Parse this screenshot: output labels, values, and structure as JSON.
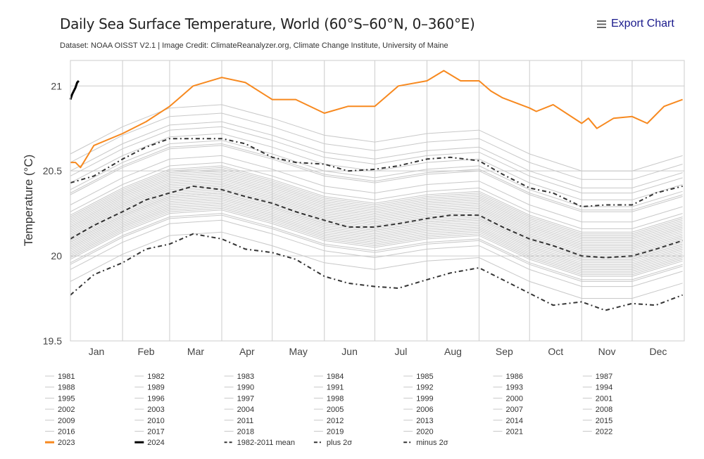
{
  "header": {
    "title": "Daily Sea Surface Temperature, World (60°S–60°N, 0–360°E)",
    "subtitle": "Dataset: NOAA OISST V2.1 | Image Credit: ClimateReanalyzer.org, Climate Change Institute, University of Maine",
    "export_label": "Export Chart",
    "export_icon": "hamburger-menu-icon"
  },
  "chart_data": {
    "type": "line",
    "ylabel": "Temperature (°C)",
    "xlabel": "",
    "ylim": [
      19.5,
      21.15
    ],
    "yticks": [
      19.5,
      20,
      20.5,
      21
    ],
    "ytick_labels": [
      "19.5",
      "20",
      "20.5",
      "21"
    ],
    "xlim": [
      0,
      365
    ],
    "x_unit": "day of year",
    "month_labels": [
      "Jan",
      "Feb",
      "Mar",
      "Apr",
      "May",
      "Jun",
      "Jul",
      "Aug",
      "Sep",
      "Oct",
      "Nov",
      "Dec"
    ],
    "month_starts": [
      0,
      31,
      59,
      90,
      120,
      151,
      181,
      212,
      243,
      273,
      304,
      334,
      365
    ],
    "grid": true,
    "legend_placement": "bottom",
    "colors": {
      "years": "#c8c8c8",
      "y2023": "#f7891f",
      "y2024": "#000000",
      "mean": "#333333"
    },
    "year_x": [
      0,
      31,
      59,
      90,
      120,
      151,
      181,
      212,
      243,
      273,
      304,
      334,
      364
    ],
    "years": [
      {
        "name": "1981",
        "values": [
          19.98,
          20.14,
          20.25,
          20.27,
          20.19,
          20.09,
          20.05,
          20.1,
          20.12,
          19.98,
          19.88,
          19.88,
          19.97
        ]
      },
      {
        "name": "1982",
        "values": [
          19.95,
          20.11,
          20.22,
          20.24,
          20.16,
          20.06,
          20.02,
          20.07,
          20.09,
          19.95,
          19.85,
          19.85,
          19.94
        ]
      },
      {
        "name": "1983",
        "values": [
          20.05,
          20.21,
          20.32,
          20.34,
          20.26,
          20.16,
          20.12,
          20.17,
          20.19,
          20.05,
          19.95,
          19.95,
          20.04
        ]
      },
      {
        "name": "1984",
        "values": [
          19.92,
          20.08,
          20.19,
          20.21,
          20.13,
          20.03,
          19.99,
          20.04,
          20.06,
          19.92,
          19.82,
          19.82,
          19.91
        ]
      },
      {
        "name": "1985",
        "values": [
          19.85,
          20.01,
          20.12,
          20.14,
          20.06,
          19.96,
          19.92,
          19.97,
          19.99,
          19.85,
          19.75,
          19.75,
          19.84
        ]
      },
      {
        "name": "1986",
        "values": [
          19.96,
          20.12,
          20.23,
          20.25,
          20.17,
          20.07,
          20.03,
          20.08,
          20.1,
          19.96,
          19.86,
          19.86,
          19.95
        ]
      },
      {
        "name": "1987",
        "values": [
          20.1,
          20.26,
          20.37,
          20.39,
          20.31,
          20.21,
          20.17,
          20.22,
          20.24,
          20.1,
          20.0,
          20.0,
          20.09
        ]
      },
      {
        "name": "1988",
        "values": [
          20.04,
          20.2,
          20.31,
          20.33,
          20.25,
          20.15,
          20.11,
          20.16,
          20.18,
          20.04,
          19.94,
          19.94,
          20.03
        ]
      },
      {
        "name": "1989",
        "values": [
          20.0,
          20.16,
          20.27,
          20.29,
          20.21,
          20.11,
          20.07,
          20.12,
          20.14,
          20.0,
          19.9,
          19.9,
          19.99
        ]
      },
      {
        "name": "1990",
        "values": [
          20.08,
          20.24,
          20.35,
          20.37,
          20.29,
          20.19,
          20.15,
          20.2,
          20.22,
          20.08,
          19.98,
          19.98,
          20.07
        ]
      },
      {
        "name": "1991",
        "values": [
          20.06,
          20.22,
          20.33,
          20.35,
          20.27,
          20.17,
          20.13,
          20.18,
          20.2,
          20.06,
          19.96,
          19.96,
          20.05
        ]
      },
      {
        "name": "1992",
        "values": [
          19.99,
          20.15,
          20.26,
          20.28,
          20.2,
          20.1,
          20.06,
          20.11,
          20.13,
          19.99,
          19.89,
          19.89,
          19.98
        ]
      },
      {
        "name": "1993",
        "values": [
          20.02,
          20.18,
          20.29,
          20.31,
          20.23,
          20.13,
          20.09,
          20.14,
          20.16,
          20.02,
          19.92,
          19.92,
          20.01
        ]
      },
      {
        "name": "1994",
        "values": [
          20.03,
          20.19,
          20.3,
          20.32,
          20.24,
          20.14,
          20.1,
          20.15,
          20.17,
          20.03,
          19.93,
          19.93,
          20.02
        ]
      },
      {
        "name": "1995",
        "values": [
          20.12,
          20.28,
          20.39,
          20.41,
          20.33,
          20.23,
          20.19,
          20.24,
          20.26,
          20.12,
          20.02,
          20.02,
          20.11
        ]
      },
      {
        "name": "1996",
        "values": [
          20.01,
          20.17,
          20.28,
          20.3,
          20.22,
          20.12,
          20.08,
          20.13,
          20.15,
          20.01,
          19.91,
          19.91,
          20.0
        ]
      },
      {
        "name": "1997",
        "values": [
          20.18,
          20.34,
          20.45,
          20.47,
          20.39,
          20.29,
          20.25,
          20.3,
          20.32,
          20.18,
          20.08,
          20.08,
          20.17
        ]
      },
      {
        "name": "1998",
        "values": [
          20.26,
          20.42,
          20.53,
          20.55,
          20.47,
          20.37,
          20.33,
          20.38,
          20.4,
          20.26,
          20.16,
          20.16,
          20.25
        ]
      },
      {
        "name": "1999",
        "values": [
          20.07,
          20.23,
          20.34,
          20.36,
          20.28,
          20.18,
          20.14,
          20.19,
          20.21,
          20.07,
          19.97,
          19.97,
          20.06
        ]
      },
      {
        "name": "2000",
        "values": [
          20.09,
          20.25,
          20.36,
          20.38,
          20.3,
          20.2,
          20.16,
          20.21,
          20.23,
          20.09,
          19.99,
          19.99,
          20.08
        ]
      },
      {
        "name": "2001",
        "values": [
          20.15,
          20.31,
          20.42,
          20.44,
          20.36,
          20.26,
          20.22,
          20.27,
          20.29,
          20.15,
          20.05,
          20.05,
          20.14
        ]
      },
      {
        "name": "2002",
        "values": [
          20.17,
          20.33,
          20.44,
          20.46,
          20.38,
          20.28,
          20.24,
          20.29,
          20.31,
          20.17,
          20.07,
          20.07,
          20.16
        ]
      },
      {
        "name": "2003",
        "values": [
          20.2,
          20.36,
          20.47,
          20.49,
          20.41,
          20.31,
          20.27,
          20.32,
          20.34,
          20.2,
          20.1,
          20.1,
          20.19
        ]
      },
      {
        "name": "2004",
        "values": [
          20.16,
          20.32,
          20.43,
          20.45,
          20.37,
          20.27,
          20.23,
          20.28,
          20.3,
          20.16,
          20.06,
          20.06,
          20.15
        ]
      },
      {
        "name": "2005",
        "values": [
          20.22,
          20.38,
          20.49,
          20.51,
          20.43,
          20.33,
          20.29,
          20.34,
          20.36,
          20.22,
          20.12,
          20.12,
          20.21
        ]
      },
      {
        "name": "2006",
        "values": [
          20.14,
          20.3,
          20.41,
          20.43,
          20.35,
          20.25,
          20.21,
          20.26,
          20.28,
          20.14,
          20.04,
          20.04,
          20.13
        ]
      },
      {
        "name": "2007",
        "values": [
          20.11,
          20.27,
          20.38,
          20.4,
          20.32,
          20.22,
          20.18,
          20.23,
          20.25,
          20.11,
          20.01,
          20.01,
          20.1
        ]
      },
      {
        "name": "2008",
        "values": [
          20.08,
          20.24,
          20.35,
          20.37,
          20.29,
          20.19,
          20.15,
          20.2,
          20.22,
          20.08,
          19.98,
          19.98,
          20.07
        ]
      },
      {
        "name": "2009",
        "values": [
          20.23,
          20.39,
          20.5,
          20.52,
          20.44,
          20.34,
          20.3,
          20.35,
          20.37,
          20.23,
          20.13,
          20.13,
          20.22
        ]
      },
      {
        "name": "2010",
        "values": [
          20.24,
          20.4,
          20.51,
          20.53,
          20.45,
          20.35,
          20.31,
          20.36,
          20.38,
          20.24,
          20.14,
          20.14,
          20.23
        ]
      },
      {
        "name": "2011",
        "values": [
          20.13,
          20.29,
          20.4,
          20.42,
          20.34,
          20.24,
          20.2,
          20.25,
          20.27,
          20.13,
          20.03,
          20.03,
          20.12
        ]
      },
      {
        "name": "2012",
        "values": [
          20.19,
          20.35,
          20.46,
          20.48,
          20.4,
          20.3,
          20.26,
          20.31,
          20.33,
          20.19,
          20.09,
          20.09,
          20.18
        ]
      },
      {
        "name": "2013",
        "values": [
          20.21,
          20.37,
          20.48,
          20.5,
          20.42,
          20.32,
          20.28,
          20.33,
          20.35,
          20.21,
          20.11,
          20.11,
          20.2
        ]
      },
      {
        "name": "2014",
        "values": [
          20.3,
          20.46,
          20.57,
          20.59,
          20.51,
          20.41,
          20.37,
          20.42,
          20.44,
          20.3,
          20.2,
          20.2,
          20.29
        ]
      },
      {
        "name": "2015",
        "values": [
          20.55,
          20.71,
          20.82,
          20.84,
          20.76,
          20.66,
          20.62,
          20.67,
          20.69,
          20.55,
          20.45,
          20.45,
          20.54
        ]
      },
      {
        "name": "2016",
        "values": [
          20.6,
          20.76,
          20.87,
          20.89,
          20.81,
          20.71,
          20.67,
          20.72,
          20.74,
          20.6,
          20.5,
          20.5,
          20.59
        ]
      },
      {
        "name": "2017",
        "values": [
          20.43,
          20.59,
          20.7,
          20.72,
          20.64,
          20.54,
          20.5,
          20.55,
          20.57,
          20.43,
          20.33,
          20.33,
          20.42
        ]
      },
      {
        "name": "2018",
        "values": [
          20.37,
          20.53,
          20.64,
          20.66,
          20.58,
          20.48,
          20.44,
          20.49,
          20.51,
          20.37,
          20.27,
          20.27,
          20.36
        ]
      },
      {
        "name": "2019",
        "values": [
          20.5,
          20.66,
          20.77,
          20.79,
          20.71,
          20.61,
          20.57,
          20.62,
          20.64,
          20.5,
          20.4,
          20.4,
          20.49
        ]
      },
      {
        "name": "2020",
        "values": [
          20.47,
          20.63,
          20.74,
          20.76,
          20.68,
          20.58,
          20.54,
          20.59,
          20.61,
          20.47,
          20.37,
          20.37,
          20.46
        ]
      },
      {
        "name": "2021",
        "values": [
          20.39,
          20.55,
          20.66,
          20.68,
          20.6,
          20.5,
          20.46,
          20.51,
          20.53,
          20.39,
          20.29,
          20.29,
          20.38
        ]
      },
      {
        "name": "2022",
        "values": [
          20.36,
          20.52,
          20.63,
          20.65,
          20.57,
          20.47,
          20.43,
          20.48,
          20.5,
          20.36,
          20.26,
          20.26,
          20.35
        ]
      }
    ],
    "highlight": [
      {
        "name": "2023",
        "style": "solid-orange",
        "x": [
          0,
          3,
          6,
          14,
          31,
          45,
          59,
          73,
          90,
          104,
          120,
          134,
          151,
          165,
          181,
          195,
          212,
          222,
          232,
          243,
          250,
          257,
          273,
          277,
          287,
          304,
          308,
          313,
          323,
          334,
          343,
          353,
          364
        ],
        "values": [
          20.55,
          20.55,
          20.52,
          20.65,
          20.72,
          20.79,
          20.88,
          21.0,
          21.05,
          21.02,
          20.92,
          20.92,
          20.84,
          20.88,
          20.88,
          21.0,
          21.03,
          21.09,
          21.03,
          21.03,
          20.97,
          20.93,
          20.87,
          20.85,
          20.89,
          20.78,
          20.81,
          20.75,
          20.81,
          20.82,
          20.78,
          20.88,
          20.92
        ]
      },
      {
        "name": "2024",
        "style": "solid-black",
        "x": [
          0,
          1,
          2,
          3,
          4,
          5
        ],
        "values": [
          20.92,
          20.95,
          20.97,
          20.99,
          21.02,
          21.03
        ]
      }
    ],
    "stats_x": [
      0,
      14,
      31,
      45,
      59,
      73,
      90,
      104,
      120,
      134,
      151,
      165,
      181,
      195,
      212,
      226,
      243,
      257,
      273,
      287,
      304,
      318,
      334,
      348,
      364
    ],
    "stats": [
      {
        "name": "1982-2011 mean",
        "style": "dashed",
        "values": [
          20.1,
          20.18,
          20.26,
          20.33,
          20.37,
          20.41,
          20.39,
          20.35,
          20.31,
          20.26,
          20.21,
          20.17,
          20.17,
          20.19,
          20.22,
          20.24,
          20.24,
          20.17,
          20.1,
          20.06,
          20.0,
          19.99,
          20.0,
          20.04,
          20.09
        ]
      },
      {
        "name": "plus 2σ",
        "style": "dash-dot",
        "values": [
          20.43,
          20.47,
          20.57,
          20.64,
          20.69,
          20.69,
          20.69,
          20.66,
          20.58,
          20.55,
          20.54,
          20.5,
          20.51,
          20.53,
          20.57,
          20.58,
          20.56,
          20.48,
          20.4,
          20.37,
          20.29,
          20.3,
          20.3,
          20.37,
          20.41
        ]
      },
      {
        "name": "minus 2σ",
        "style": "dash-dot",
        "values": [
          19.77,
          19.89,
          19.96,
          20.04,
          20.07,
          20.13,
          20.1,
          20.04,
          20.02,
          19.98,
          19.88,
          19.84,
          19.82,
          19.81,
          19.86,
          19.9,
          19.93,
          19.86,
          19.78,
          19.71,
          19.73,
          19.68,
          19.72,
          19.71,
          19.77
        ]
      }
    ]
  }
}
